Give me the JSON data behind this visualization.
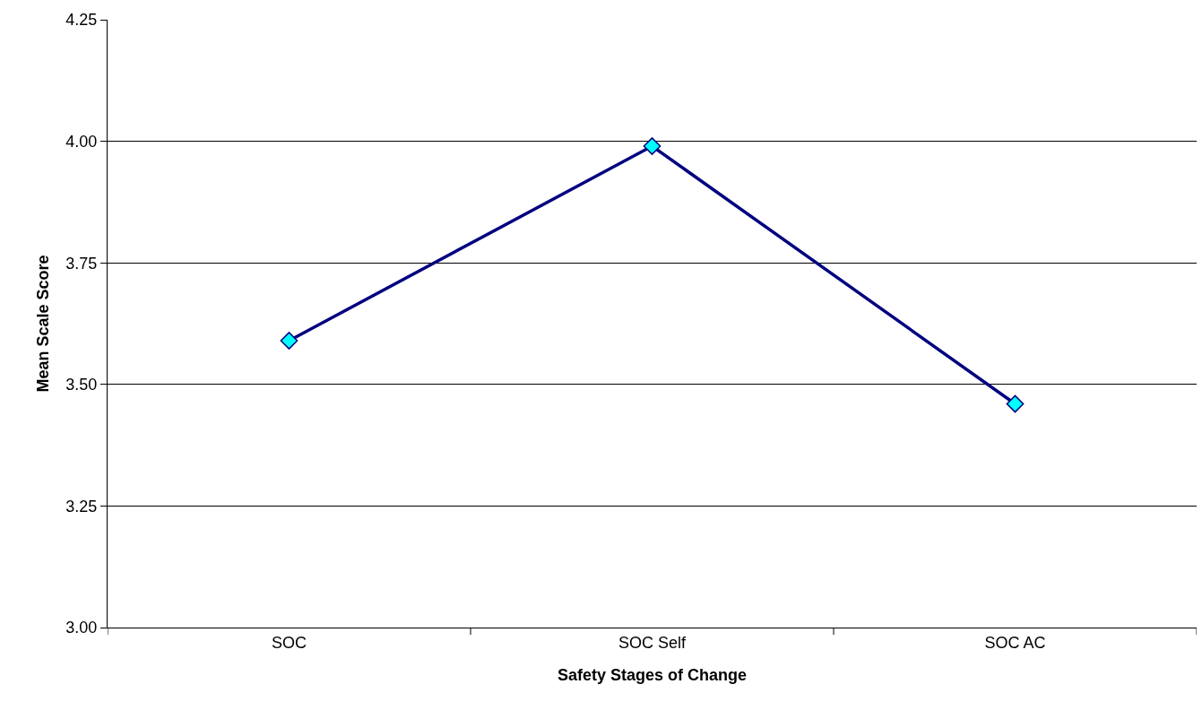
{
  "chart_data": {
    "type": "line",
    "xlabel": "Safety Stages of Change",
    "ylabel": "Mean Scale Score",
    "categories": [
      "SOC",
      "SOC Self",
      "SOC AC"
    ],
    "series": [
      {
        "color": "#000080",
        "values": [
          3.59,
          3.99,
          3.46
        ]
      }
    ],
    "ylim": [
      3.0,
      4.25
    ],
    "yticks": [
      {
        "value": 3,
        "label": "3.00"
      },
      {
        "value": 3.25,
        "label": "3.25"
      },
      {
        "value": 3.5,
        "label": "3.50"
      },
      {
        "value": 3.75,
        "label": "3.75"
      },
      {
        "value": 4,
        "label": "4.00"
      },
      {
        "value": 4.25,
        "label": "4.25"
      }
    ],
    "grid": "y",
    "marker": "diamond",
    "line_style": "solid"
  }
}
